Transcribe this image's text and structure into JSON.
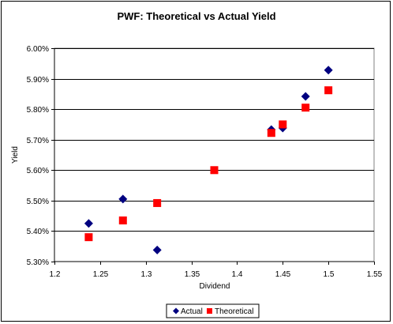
{
  "chart_data": {
    "type": "scatter",
    "title": "PWF: Theoretical vs Actual Yield",
    "xlabel": "Dividend",
    "ylabel": "Yield",
    "xlim": [
      1.2,
      1.55
    ],
    "ylim": [
      0.053,
      0.06
    ],
    "x_ticks": [
      1.2,
      1.25,
      1.3,
      1.35,
      1.4,
      1.45,
      1.5,
      1.55
    ],
    "x_tick_labels": [
      "1.2",
      "1.25",
      "1.3",
      "1.35",
      "1.4",
      "1.45",
      "1.5",
      "1.55"
    ],
    "y_ticks": [
      0.053,
      0.054,
      0.055,
      0.056,
      0.057,
      0.058,
      0.059,
      0.06
    ],
    "y_tick_labels": [
      "5.30%",
      "5.40%",
      "5.50%",
      "5.60%",
      "5.70%",
      "5.80%",
      "5.90%",
      "6.00%"
    ],
    "grid": "horizontal",
    "legend": "bottom",
    "series": [
      {
        "name": "Actual",
        "color": "#000080",
        "marker": "diamond",
        "points": [
          [
            1.2375,
            0.05425
          ],
          [
            1.275,
            0.05505
          ],
          [
            1.3125,
            0.05338
          ],
          [
            1.4375,
            0.05733
          ],
          [
            1.45,
            0.05738
          ],
          [
            1.475,
            0.05842
          ],
          [
            1.5,
            0.05928
          ]
        ]
      },
      {
        "name": "Theoretical",
        "color": "#ff0000",
        "marker": "square",
        "points": [
          [
            1.2375,
            0.0538
          ],
          [
            1.275,
            0.05435
          ],
          [
            1.3125,
            0.05492
          ],
          [
            1.375,
            0.056
          ],
          [
            1.4375,
            0.05722
          ],
          [
            1.45,
            0.0575
          ],
          [
            1.475,
            0.05805
          ],
          [
            1.5,
            0.05862
          ]
        ]
      }
    ]
  }
}
